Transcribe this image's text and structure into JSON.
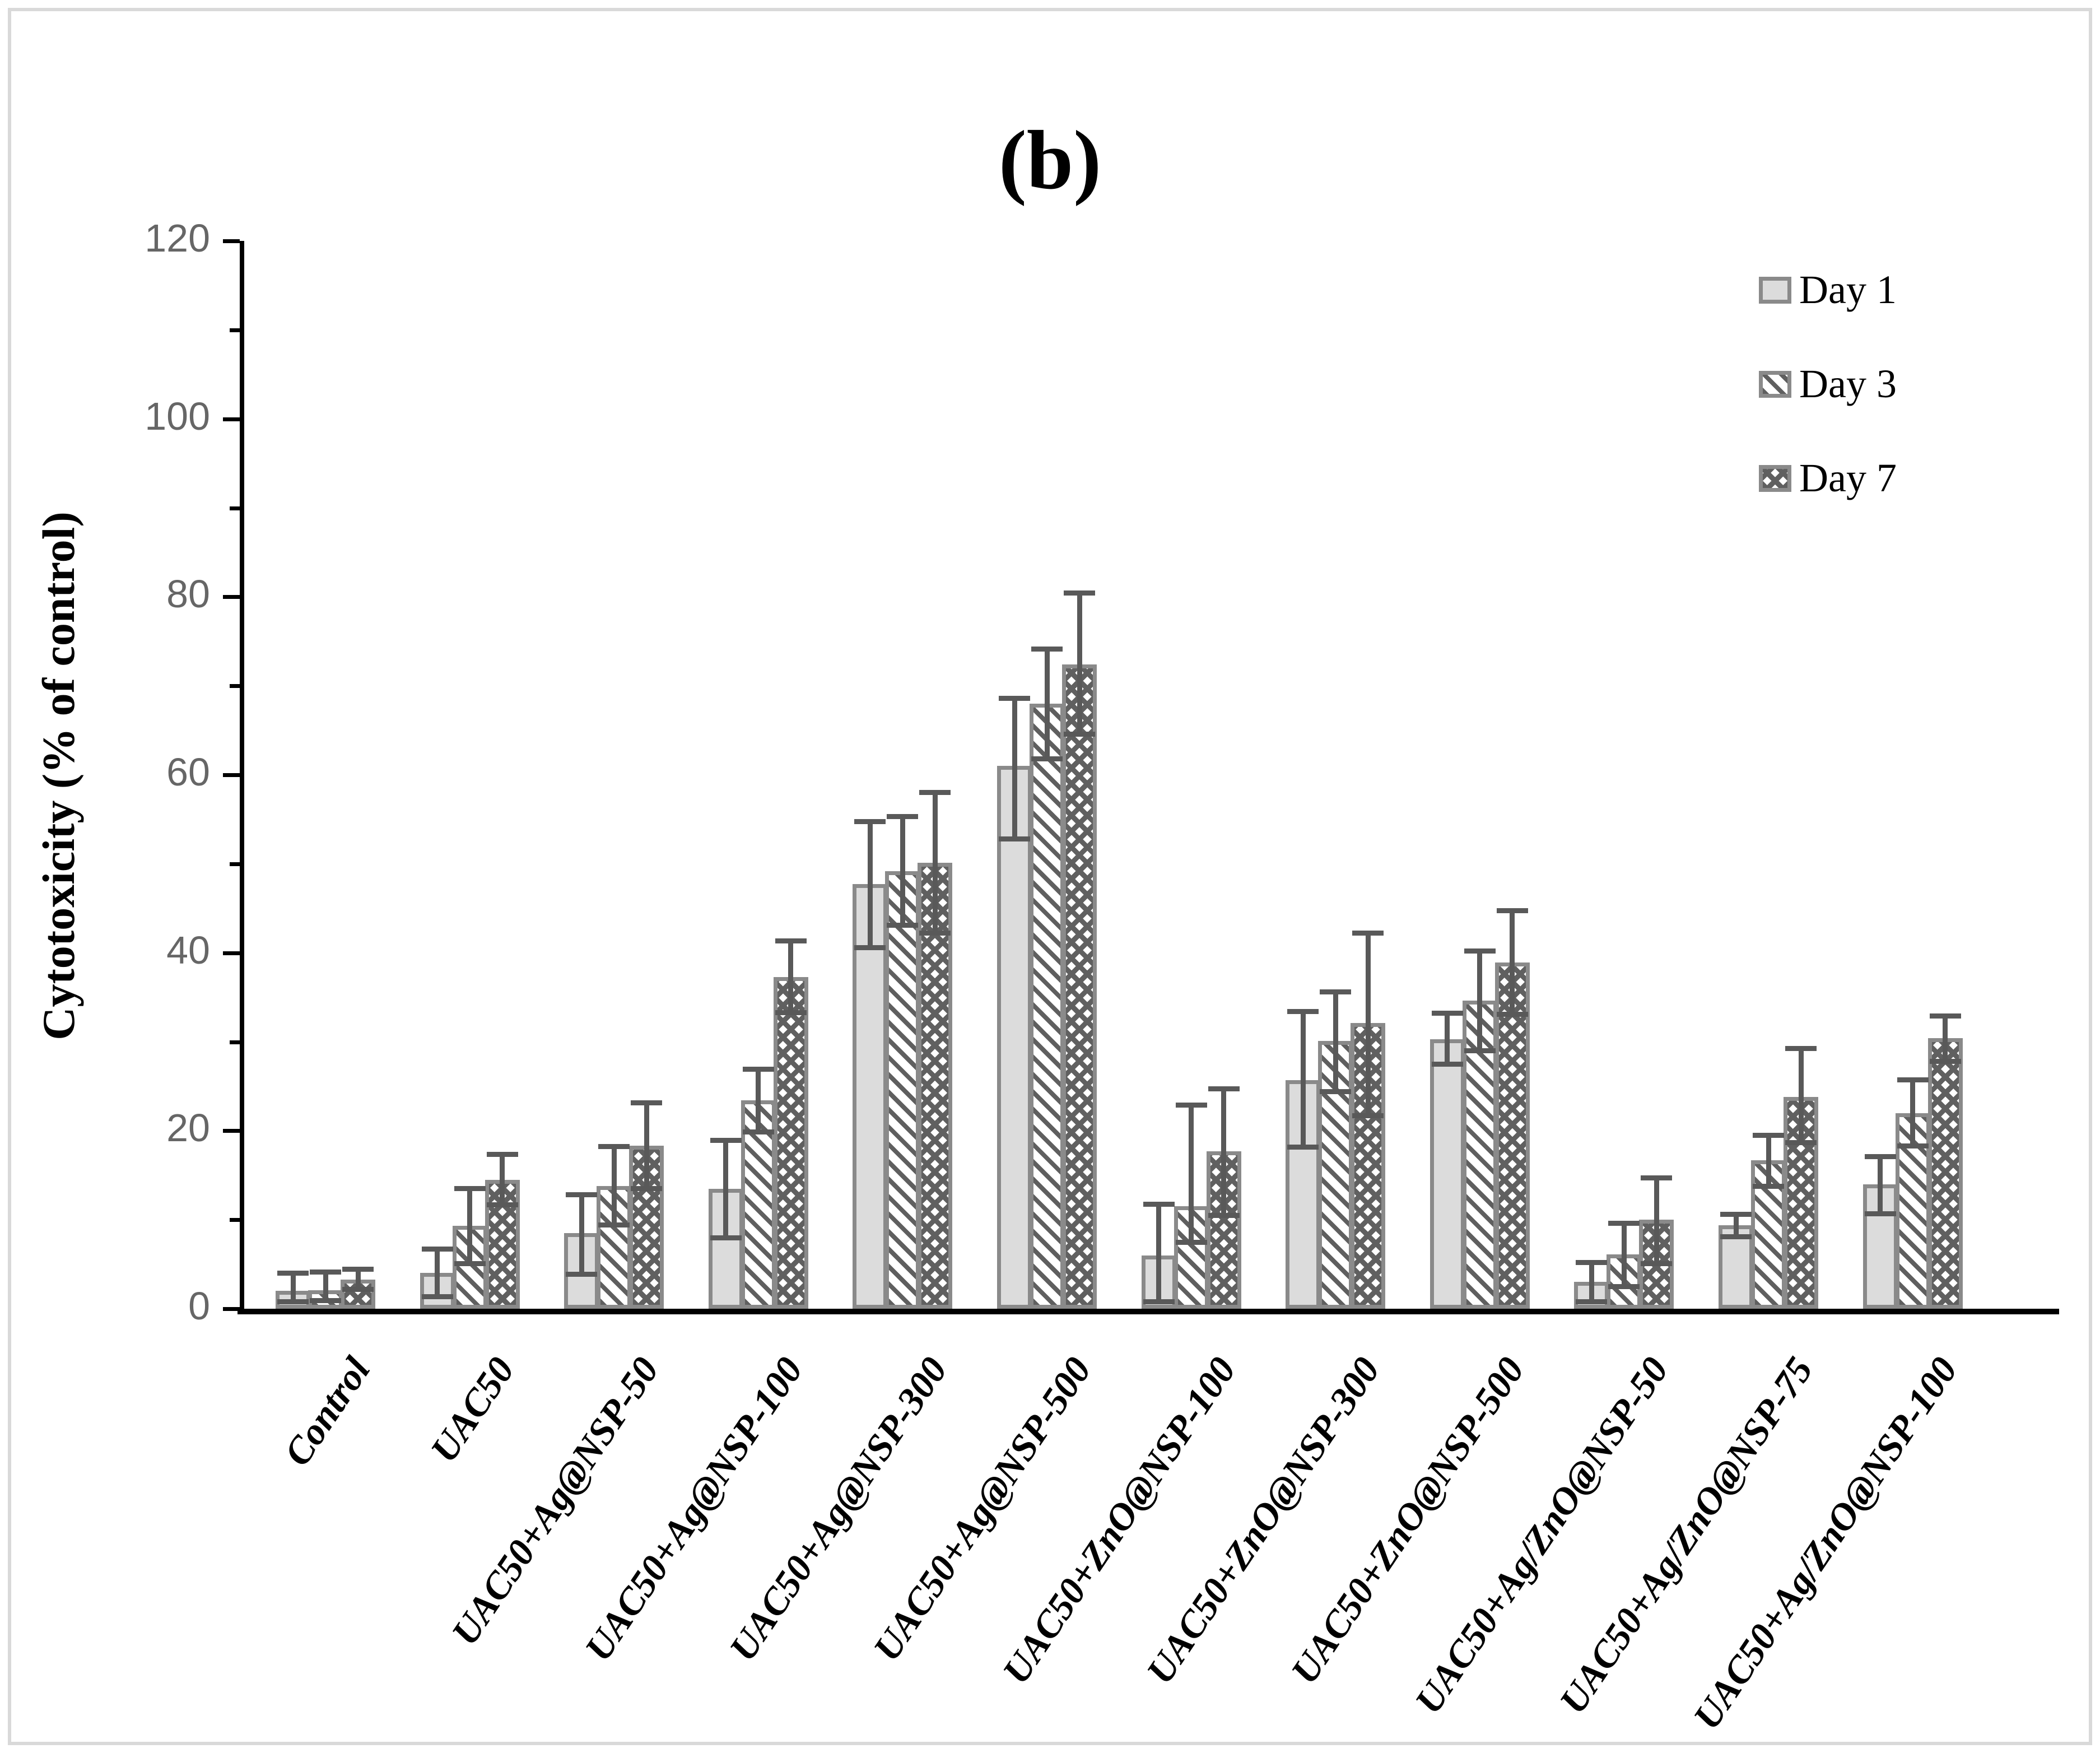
{
  "figure": {
    "panel_label": "(b)"
  },
  "chart_data": {
    "type": "bar",
    "title": "(b)",
    "xlabel": "",
    "ylabel": "Cytotoxicity (% of control)",
    "ylim": [
      0,
      120
    ],
    "yticks": [
      0,
      20,
      40,
      60,
      80,
      100,
      120
    ],
    "y_minor_step": 10,
    "grid": false,
    "legend_position": "top-right",
    "categories": [
      "Control",
      "UAC50",
      "UAC50+Ag@NSP-50",
      "UAC50+Ag@NSP-100",
      "UAC50+Ag@NSP-300",
      "UAC50+Ag@NSP-500",
      "UAC50+ZnO@NSP-100",
      "UAC50+ZnO@NSP-300",
      "UAC50+ZnO@NSP-500",
      "UAC50+Ag/ZnO@NSP-50",
      "UAC50+Ag/ZnO@NSP-75",
      "UAC50+Ag/ZnO@NSP-100"
    ],
    "series": [
      {
        "name": "Day 1",
        "pattern": "solid-light-gray",
        "values": [
          2.0,
          4.0,
          8.5,
          13.5,
          47.7,
          61.0,
          6.0,
          25.7,
          30.3,
          3.0,
          9.4,
          14.0
        ],
        "errors_up": [
          2.3,
          3.0,
          4.6,
          5.7,
          7.3,
          7.9,
          6.0,
          8.0,
          3.2,
          2.5,
          1.5,
          3.4
        ],
        "errors_down": [
          1.5,
          2.9,
          4.9,
          5.8,
          7.4,
          8.5,
          5.5,
          7.8,
          3.1,
          2.5,
          1.6,
          3.6
        ]
      },
      {
        "name": "Day 3",
        "pattern": "diagonal-stripes",
        "values": [
          2.1,
          9.3,
          13.8,
          23.4,
          49.2,
          68.0,
          11.5,
          30.1,
          34.6,
          6.1,
          16.7,
          22.0
        ],
        "errors_up": [
          2.3,
          4.5,
          4.7,
          3.8,
          6.4,
          6.4,
          11.7,
          5.8,
          5.9,
          3.8,
          3.1,
          4.0
        ],
        "errors_down": [
          1.5,
          4.5,
          4.7,
          3.8,
          6.4,
          6.5,
          4.3,
          6.0,
          5.9,
          3.9,
          3.2,
          4.0
        ]
      },
      {
        "name": "Day 7",
        "pattern": "checkerboard",
        "values": [
          3.3,
          14.5,
          18.3,
          37.3,
          50.1,
          72.4,
          17.7,
          32.1,
          38.9,
          10.0,
          23.8,
          30.4
        ],
        "errors_up": [
          1.4,
          3.1,
          5.1,
          4.3,
          8.2,
          8.3,
          7.3,
          10.4,
          6.1,
          5.0,
          5.7,
          2.8
        ],
        "errors_down": [
          1.4,
          3.1,
          5.1,
          4.3,
          8.2,
          8.1,
          7.5,
          10.7,
          6.1,
          5.2,
          5.4,
          2.9
        ]
      }
    ],
    "colors": {
      "bar_fill_day1": "#dcdcdc",
      "bar_border": "#8a8a8a",
      "pattern_dark": "#5f5f5f",
      "error_bar": "#595959",
      "tick_label": "#666666",
      "axis": "#000000",
      "frame_border": "#d9d9d9"
    }
  }
}
